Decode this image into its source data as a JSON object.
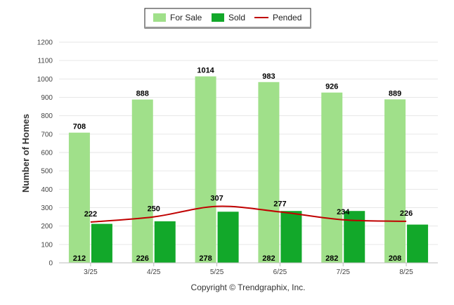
{
  "chart_data": {
    "type": "bar",
    "categories": [
      "3/25",
      "4/25",
      "5/25",
      "6/25",
      "7/25",
      "8/25"
    ],
    "series": [
      {
        "name": "For Sale",
        "kind": "bar",
        "color": "#a0e08a",
        "values": [
          708,
          888,
          1014,
          983,
          926,
          889
        ],
        "labels": [
          "708",
          "888",
          "1014",
          "983",
          "926",
          "889"
        ]
      },
      {
        "name": "Sold",
        "kind": "bar",
        "color": "#12a82a",
        "values": [
          212,
          226,
          278,
          282,
          282,
          208
        ],
        "labels": [
          "212",
          "226",
          "278",
          "282",
          "282",
          "208"
        ]
      },
      {
        "name": "Pended",
        "kind": "line",
        "color": "#c00000",
        "values": [
          222,
          250,
          307,
          277,
          234,
          226
        ],
        "labels": [
          "222",
          "250",
          "307",
          "277",
          "234",
          "226"
        ]
      }
    ],
    "yticks": [
      0,
      100,
      200,
      300,
      400,
      500,
      600,
      700,
      800,
      900,
      1000,
      1100,
      1200
    ],
    "ytick_labels": [
      "0",
      "100",
      "200",
      "300",
      "400",
      "500",
      "600",
      "700",
      "800",
      "900",
      "1000",
      "1100",
      "1200"
    ],
    "ylim": [
      0,
      1200
    ],
    "ylabel": "Number of Homes",
    "xlabel": "",
    "title": "",
    "grid": true,
    "legend": "top-center"
  },
  "footer": {
    "copyright": "Copyright © Trendgraphix, Inc."
  }
}
